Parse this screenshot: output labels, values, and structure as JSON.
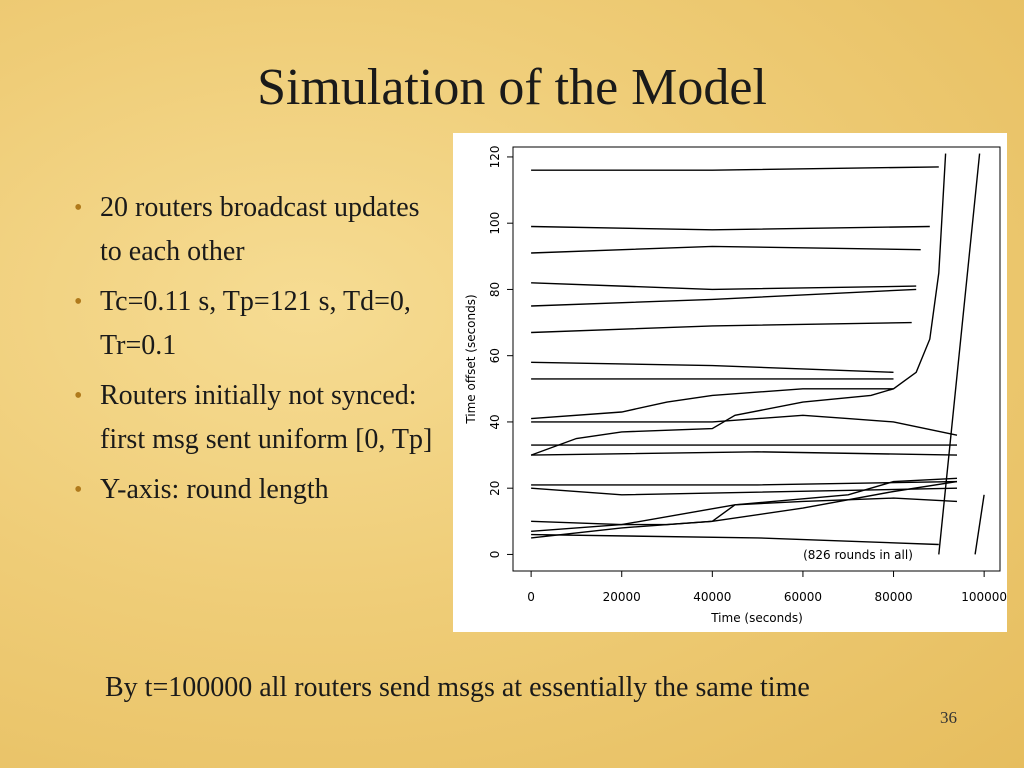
{
  "slide": {
    "title": "Simulation of the Model",
    "bullets": [
      "20 routers broadcast updates to each other",
      "Tc=0.11 s, Tp=121 s, Td=0, Tr=0.1",
      "Routers initially not synced: first msg sent uniform [0, Tp]",
      "Y-axis: round length"
    ],
    "caption": "By t=100000 all routers send msgs at essentially the same time",
    "page_number": "36"
  },
  "chart_data": {
    "type": "line",
    "x_label": "Time (seconds)",
    "y_label": "Time offset (seconds)",
    "annotation": "(826 rounds in all)",
    "xlim": [
      -4000,
      103500
    ],
    "xticks": [
      0,
      20000,
      40000,
      60000,
      80000,
      100000
    ],
    "ylim": [
      -5,
      123
    ],
    "yticks": [
      0,
      20,
      40,
      60,
      80,
      100,
      120
    ],
    "series": [
      {
        "color": "#000000",
        "x": [
          0,
          40000,
          90000
        ],
        "values": [
          116,
          116,
          117
        ]
      },
      {
        "color": "#000000",
        "x": [
          0,
          40000,
          88000
        ],
        "values": [
          99,
          98,
          99
        ]
      },
      {
        "color": "#000000",
        "x": [
          0,
          40000,
          86000
        ],
        "values": [
          91,
          93,
          92
        ]
      },
      {
        "color": "#000000",
        "x": [
          0,
          40000,
          85000
        ],
        "values": [
          82,
          80,
          81
        ]
      },
      {
        "color": "#000000",
        "x": [
          0,
          40000,
          85000
        ],
        "values": [
          75,
          77,
          80
        ]
      },
      {
        "color": "#000000",
        "x": [
          0,
          40000,
          84000
        ],
        "values": [
          67,
          69,
          70
        ]
      },
      {
        "color": "#000000",
        "x": [
          0,
          40000,
          80000
        ],
        "values": [
          58,
          57,
          55
        ]
      },
      {
        "color": "#000000",
        "x": [
          0,
          40000,
          80000
        ],
        "values": [
          53,
          53,
          53
        ]
      },
      {
        "color": "#000000",
        "x": [
          0,
          10000,
          20000,
          40000,
          45000,
          60000,
          75000,
          80000,
          85000,
          88000,
          90000,
          91500
        ],
        "values": [
          30,
          35,
          37,
          38,
          42,
          46,
          48,
          50,
          55,
          65,
          85,
          121
        ]
      },
      {
        "color": "#000000",
        "x": [
          0,
          20000,
          30000,
          40000,
          60000,
          80000
        ],
        "values": [
          41,
          43,
          46,
          48,
          50,
          50
        ]
      },
      {
        "color": "#000000",
        "x": [
          0,
          40000,
          60000,
          70000,
          80000,
          94000
        ],
        "values": [
          40,
          40,
          42,
          41,
          40,
          36
        ]
      },
      {
        "color": "#000000",
        "x": [
          0,
          50000,
          94000
        ],
        "values": [
          33,
          33,
          33
        ]
      },
      {
        "color": "#000000",
        "x": [
          0,
          50000,
          94000
        ],
        "values": [
          30,
          31,
          30
        ]
      },
      {
        "color": "#000000",
        "x": [
          0,
          50000,
          94000
        ],
        "values": [
          21,
          21,
          22
        ]
      },
      {
        "color": "#000000",
        "x": [
          0,
          20000,
          94000
        ],
        "values": [
          20,
          18,
          20
        ]
      },
      {
        "color": "#000000",
        "x": [
          0,
          20000,
          45000,
          60000,
          80000,
          94000
        ],
        "values": [
          10,
          9,
          15,
          16,
          17,
          16
        ]
      },
      {
        "color": "#000000",
        "x": [
          0,
          20000,
          30000,
          40000,
          45000,
          70000,
          80000,
          94000
        ],
        "values": [
          7,
          9,
          9,
          10,
          15,
          18,
          22,
          23
        ]
      },
      {
        "color": "#000000",
        "x": [
          0,
          20000,
          40000,
          60000,
          80000,
          94000
        ],
        "values": [
          5,
          8,
          10,
          14,
          19,
          22
        ]
      },
      {
        "color": "#000000",
        "x": [
          0,
          50000,
          70000,
          90000
        ],
        "values": [
          6,
          5,
          4,
          3
        ]
      },
      {
        "color": "#000000",
        "x": [
          90000,
          99000
        ],
        "values": [
          0,
          121
        ]
      },
      {
        "color": "#000000",
        "x": [
          98000,
          100000
        ],
        "values": [
          0,
          18
        ]
      }
    ]
  }
}
